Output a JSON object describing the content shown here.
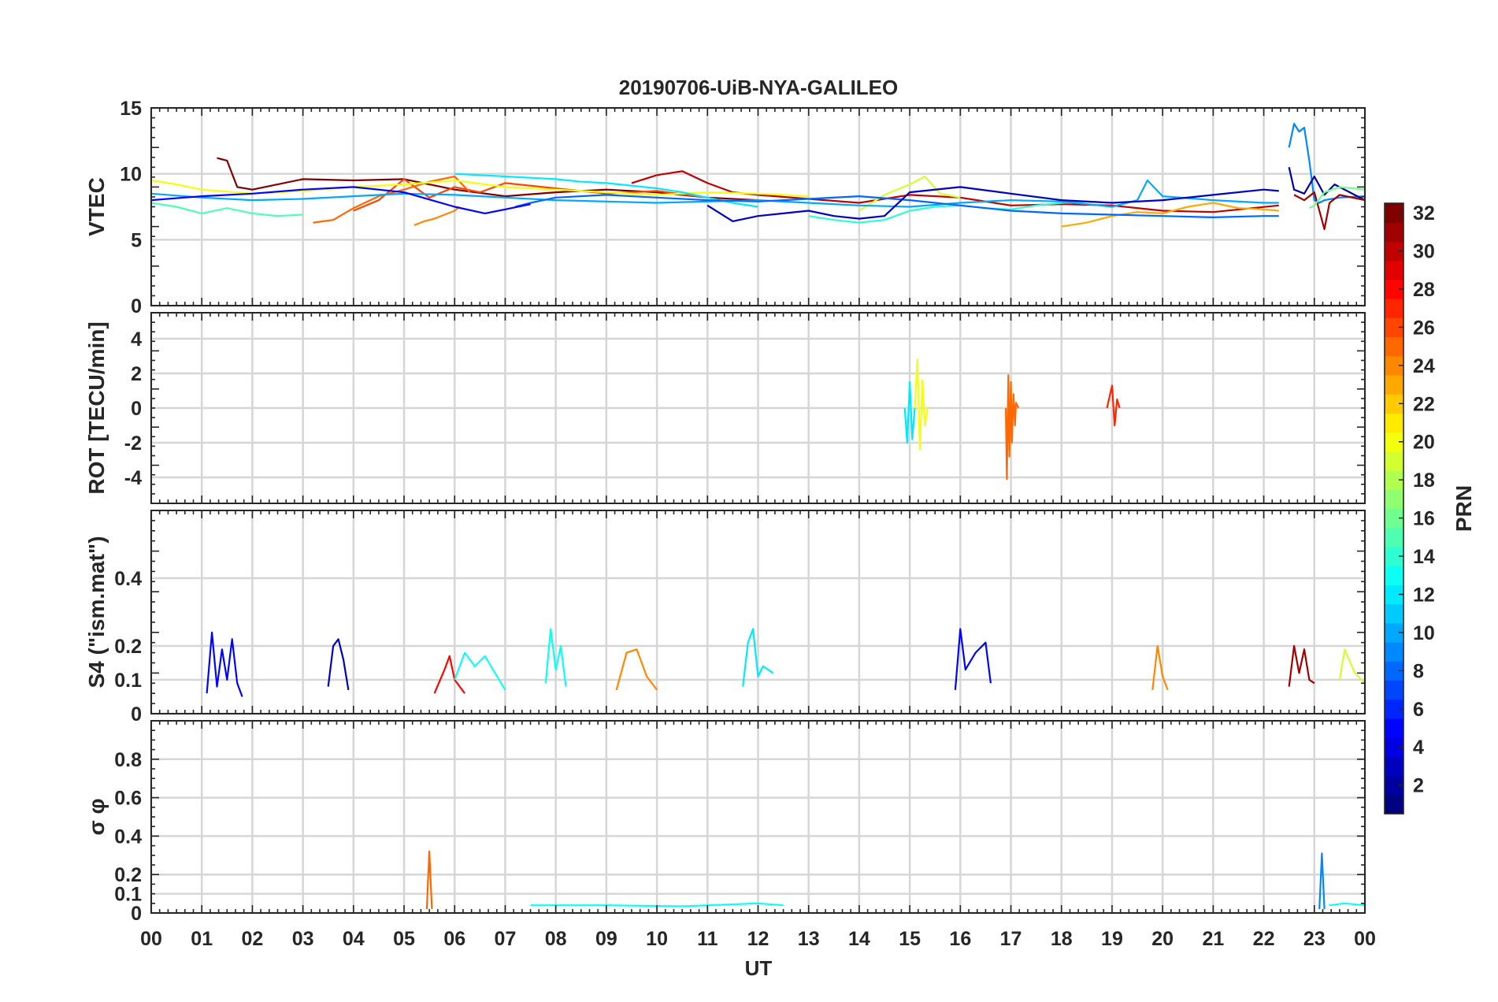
{
  "chart_data": {
    "type": "line",
    "title": "20190706-UiB-NYA-GALILEO",
    "xlabel": "UT",
    "x_tick_labels": [
      "00",
      "01",
      "02",
      "03",
      "04",
      "05",
      "06",
      "07",
      "08",
      "09",
      "10",
      "11",
      "12",
      "13",
      "14",
      "15",
      "16",
      "17",
      "18",
      "19",
      "20",
      "21",
      "22",
      "23",
      "00"
    ],
    "xlim": [
      0,
      24
    ],
    "grid": true,
    "panels": [
      {
        "ylabel": "VTEC",
        "ylim": [
          0,
          15
        ],
        "y_ticks": [
          0,
          5,
          10,
          15
        ],
        "y_tick_labels": [
          "0",
          "5",
          "10",
          "15"
        ],
        "series": [
          {
            "prn": 32,
            "x": [
              1.3,
              1.5,
              1.7,
              2.0,
              3.0,
              4.0,
              5.0,
              6.0,
              7.0,
              8.0,
              9.0,
              10.0,
              11.0,
              12.0
            ],
            "y": [
              11.2,
              11.0,
              9.0,
              8.8,
              9.6,
              9.5,
              9.6,
              8.8,
              8.3,
              8.6,
              8.8,
              8.6,
              8.2,
              8.0
            ]
          },
          {
            "prn": 30,
            "x": [
              9.5,
              10.0,
              10.5,
              11.0,
              11.5,
              12.0,
              13.0,
              14.0,
              15.0,
              16.0,
              17.0,
              18.0,
              19.0,
              20.0,
              21.0,
              22.3
            ],
            "y": [
              9.3,
              9.9,
              10.2,
              9.3,
              8.6,
              8.4,
              8.1,
              7.8,
              8.4,
              8.2,
              7.6,
              7.7,
              7.6,
              7.2,
              7.1,
              7.6
            ]
          },
          {
            "prn": 26,
            "x": [
              4.0,
              4.5,
              5.0,
              5.5,
              6.0,
              6.5,
              7.0,
              8.0,
              9.0,
              10.0,
              11.0
            ],
            "y": [
              7.2,
              8.0,
              9.6,
              8.2,
              9.0,
              8.6,
              9.3,
              8.9,
              8.5,
              8.7,
              8.2
            ]
          },
          {
            "prn": 25,
            "x": [
              3.2,
              3.6,
              4.0,
              4.5,
              5.0,
              5.5,
              6.0,
              6.3
            ],
            "y": [
              6.3,
              6.5,
              7.4,
              8.3,
              8.8,
              9.4,
              9.8,
              8.6
            ]
          },
          {
            "prn": 24,
            "x": [
              5.2,
              5.4,
              5.6,
              5.8,
              6.0,
              6.1
            ],
            "y": [
              6.1,
              6.4,
              6.6,
              6.9,
              7.2,
              7.5
            ]
          },
          {
            "prn": 23,
            "x": [
              18.0,
              18.5,
              19.0,
              19.5,
              20.0,
              20.5,
              21.0,
              21.5,
              22.0,
              22.3
            ],
            "y": [
              6.0,
              6.3,
              6.8,
              7.1,
              7.0,
              7.5,
              7.8,
              7.4,
              7.3,
              7.2
            ]
          },
          {
            "prn": 20,
            "x": [
              0.0,
              0.5,
              1.0,
              2.0,
              3.0,
              4.0,
              5.0,
              6.0,
              7.0,
              8.0,
              9.0,
              10.0,
              11.0,
              12.0,
              13.0
            ],
            "y": [
              9.5,
              9.2,
              8.8,
              8.5,
              8.7,
              9.0,
              9.2,
              9.5,
              9.0,
              8.8,
              8.6,
              8.4,
              8.6,
              8.5,
              8.3
            ]
          },
          {
            "prn": 19,
            "x": [
              14.0,
              14.5,
              15.0,
              15.3,
              15.6,
              16.0
            ],
            "y": [
              7.2,
              8.4,
              9.2,
              9.8,
              8.5,
              8.2
            ]
          },
          {
            "prn": 15,
            "x": [
              0.0,
              0.5,
              1.0,
              1.5,
              2.0,
              2.5,
              3.0
            ],
            "y": [
              7.8,
              7.5,
              7.0,
              7.4,
              7.0,
              6.8,
              6.9
            ]
          },
          {
            "prn": 14,
            "x": [
              13.0,
              13.5,
              14.0,
              14.5,
              15.0,
              15.5,
              16.0,
              16.5,
              17.0,
              17.5,
              18.0,
              18.5,
              19.0
            ],
            "y": [
              6.8,
              6.5,
              6.3,
              6.5,
              7.2,
              7.5,
              7.6,
              7.4,
              7.3,
              7.6,
              7.8,
              7.9,
              7.8
            ]
          },
          {
            "prn": 12,
            "x": [
              6.0,
              6.5,
              7.0,
              7.5,
              8.0,
              8.5,
              9.0,
              9.5,
              10.0,
              10.5,
              11.0,
              11.5,
              12.0
            ],
            "y": [
              10.0,
              9.9,
              9.8,
              9.7,
              9.6,
              9.4,
              9.3,
              9.1,
              8.9,
              8.6,
              8.2,
              7.8,
              7.5
            ]
          },
          {
            "prn": 10,
            "x": [
              0.0,
              1.0,
              2.0,
              3.0,
              4.0,
              5.0,
              6.0,
              7.0,
              8.0,
              9.0,
              10.0,
              11.0,
              12.0,
              13.0,
              14.0,
              15.0,
              16.0,
              17.0,
              18.0,
              19.0,
              19.5,
              19.7,
              20.0,
              21.0,
              22.0,
              22.3
            ],
            "y": [
              8.5,
              8.2,
              8.0,
              8.1,
              8.3,
              8.5,
              8.4,
              8.2,
              8.0,
              7.9,
              7.8,
              7.9,
              8.0,
              7.8,
              7.6,
              7.5,
              7.8,
              8.0,
              7.9,
              7.5,
              8.0,
              9.5,
              8.3,
              8.0,
              7.8,
              7.8
            ]
          },
          {
            "prn": 9,
            "x": [
              22.5,
              22.6,
              22.7,
              22.8,
              22.9,
              23.0,
              23.1,
              23.2,
              23.5,
              24.0
            ],
            "y": [
              12.0,
              13.8,
              13.2,
              13.5,
              11.0,
              8.0,
              7.8,
              8.0,
              8.2,
              8.3
            ]
          },
          {
            "prn": 8,
            "x": [
              7.2,
              7.5,
              8.0,
              9.0,
              10.0,
              11.0,
              12.0,
              13.0,
              14.0,
              15.0,
              16.0,
              17.0,
              18.0,
              19.0,
              20.0,
              21.0,
              22.0,
              22.3
            ],
            "y": [
              7.5,
              7.8,
              8.2,
              8.4,
              8.2,
              8.0,
              7.9,
              8.1,
              8.3,
              8.0,
              7.6,
              7.2,
              7.0,
              6.9,
              6.8,
              6.7,
              6.8,
              6.8
            ]
          },
          {
            "prn": 5,
            "x": [
              0.0,
              1.0,
              2.0,
              3.0,
              4.0,
              5.0,
              6.0,
              6.6,
              7.0,
              7.5
            ],
            "y": [
              8.0,
              8.3,
              8.5,
              8.8,
              9.0,
              8.6,
              7.5,
              7.0,
              7.3,
              7.7
            ]
          },
          {
            "prn": 3,
            "x": [
              11.0,
              11.5,
              12.0,
              12.5,
              13.0,
              13.5,
              14.0,
              14.5,
              15.0,
              16.0,
              17.0,
              18.0,
              19.0,
              20.0,
              21.0,
              22.0,
              22.3
            ],
            "y": [
              7.6,
              6.4,
              6.8,
              7.0,
              7.2,
              6.8,
              6.6,
              6.8,
              8.6,
              9.0,
              8.5,
              8.0,
              7.8,
              8.0,
              8.4,
              8.8,
              8.7
            ]
          },
          {
            "prn": 2,
            "x": [
              22.5,
              22.6,
              22.8,
              23.0,
              23.2,
              23.4,
              24.0
            ],
            "y": [
              10.5,
              8.8,
              8.5,
              9.8,
              8.4,
              9.2,
              8.0
            ]
          },
          {
            "prn": 31,
            "x": [
              22.6,
              22.8,
              23.0,
              23.2,
              23.3,
              23.5,
              24.0
            ],
            "y": [
              8.4,
              8.0,
              8.6,
              5.8,
              7.8,
              8.4,
              8.0
            ]
          },
          {
            "prn": 16,
            "x": [
              22.9,
              23.0,
              23.2,
              23.5,
              24.0
            ],
            "y": [
              7.4,
              7.6,
              8.6,
              9.0,
              8.8
            ]
          }
        ]
      },
      {
        "ylabel": "ROT [TECU/min]",
        "ylim": [
          -5.5,
          5.5
        ],
        "y_ticks": [
          -4,
          -2,
          0,
          2,
          4
        ],
        "y_tick_labels": [
          "-4",
          "-2",
          "0",
          "2",
          "4"
        ],
        "series": [
          {
            "prn": 25,
            "x": [
              16.9,
              16.92,
              16.95,
              16.97,
              17.0,
              17.02,
              17.05,
              17.08,
              17.1,
              17.15
            ],
            "y": [
              0.0,
              -4.1,
              1.9,
              -2.8,
              1.5,
              -2.0,
              0.8,
              -1.0,
              0.3,
              0.0
            ]
          },
          {
            "prn": 20,
            "x": [
              15.1,
              15.15,
              15.2,
              15.25,
              15.3,
              15.35
            ],
            "y": [
              0.0,
              2.8,
              -2.4,
              1.6,
              -1.0,
              0.0
            ]
          },
          {
            "prn": 12,
            "x": [
              14.9,
              14.95,
              15.0,
              15.05,
              15.1
            ],
            "y": [
              0.0,
              -2.0,
              1.5,
              -1.8,
              0.0
            ]
          },
          {
            "prn": 27,
            "x": [
              18.9,
              19.0,
              19.05,
              19.1,
              19.15
            ],
            "y": [
              0.0,
              1.3,
              -1.0,
              0.5,
              0.0
            ]
          }
        ]
      },
      {
        "ylabel": "S4 (\"ism.mat\")",
        "ylim": [
          0,
          0.6
        ],
        "y_ticks": [
          0,
          0.1,
          0.2,
          0.4
        ],
        "y_tick_labels": [
          "0",
          "0.1",
          "0.2",
          "0.4"
        ],
        "series": [
          {
            "prn": 5,
            "x": [
              1.1,
              1.2,
              1.3,
              1.4,
              1.5,
              1.6,
              1.7,
              1.8
            ],
            "y": [
              0.06,
              0.24,
              0.08,
              0.19,
              0.1,
              0.22,
              0.09,
              0.05
            ]
          },
          {
            "prn": 3,
            "x": [
              3.5,
              3.6,
              3.7,
              3.8,
              3.9
            ],
            "y": [
              0.08,
              0.2,
              0.22,
              0.16,
              0.07
            ]
          },
          {
            "prn": 28,
            "x": [
              5.6,
              5.8,
              5.9,
              6.0,
              6.2
            ],
            "y": [
              0.06,
              0.13,
              0.17,
              0.1,
              0.06
            ]
          },
          {
            "prn": 13,
            "x": [
              6.0,
              6.2,
              6.4,
              6.6,
              6.8,
              7.0
            ],
            "y": [
              0.1,
              0.18,
              0.14,
              0.17,
              0.12,
              0.07
            ]
          },
          {
            "prn": 13,
            "x": [
              7.8,
              7.9,
              8.0,
              8.1,
              8.2
            ],
            "y": [
              0.09,
              0.25,
              0.13,
              0.2,
              0.08
            ]
          },
          {
            "prn": 24,
            "x": [
              9.2,
              9.4,
              9.6,
              9.8,
              10.0
            ],
            "y": [
              0.07,
              0.18,
              0.19,
              0.11,
              0.07
            ]
          },
          {
            "prn": 12,
            "x": [
              11.7,
              11.8,
              11.9,
              12.0,
              12.1,
              12.3
            ],
            "y": [
              0.08,
              0.21,
              0.25,
              0.11,
              0.14,
              0.12
            ]
          },
          {
            "prn": 5,
            "x": [
              15.9,
              16.0,
              16.1,
              16.3,
              16.5,
              16.6
            ],
            "y": [
              0.07,
              0.25,
              0.13,
              0.18,
              0.21,
              0.09
            ]
          },
          {
            "prn": 31,
            "x": [
              22.5,
              22.6,
              22.7,
              22.8,
              22.9,
              23.0
            ],
            "y": [
              0.08,
              0.2,
              0.12,
              0.19,
              0.1,
              0.09
            ]
          },
          {
            "prn": 19,
            "x": [
              23.5,
              23.6,
              23.8,
              24.0
            ],
            "y": [
              0.1,
              0.19,
              0.12,
              0.09
            ]
          },
          {
            "prn": 24,
            "x": [
              19.8,
              19.9,
              20.0,
              20.1
            ],
            "y": [
              0.07,
              0.2,
              0.11,
              0.07
            ]
          }
        ]
      },
      {
        "ylabel": "σ φ",
        "ylim": [
          0,
          1
        ],
        "y_ticks": [
          0,
          0.1,
          0.2,
          0.4,
          0.6,
          0.8
        ],
        "y_tick_labels": [
          "0",
          "0.1",
          "0.2",
          "0.4",
          "0.6",
          "0.8"
        ],
        "series": [
          {
            "prn": 25,
            "x": [
              5.45,
              5.5,
              5.55
            ],
            "y": [
              0.02,
              0.32,
              0.02
            ]
          },
          {
            "prn": 9,
            "x": [
              23.1,
              23.15,
              23.2
            ],
            "y": [
              0.02,
              0.31,
              0.02
            ]
          },
          {
            "prn": 13,
            "x": [
              7.5,
              9.0,
              10.5,
              12.0,
              12.5
            ],
            "y": [
              0.04,
              0.04,
              0.035,
              0.05,
              0.04
            ]
          },
          {
            "prn": 13,
            "x": [
              23.3,
              23.6,
              24.0
            ],
            "y": [
              0.04,
              0.05,
              0.04
            ]
          }
        ]
      }
    ],
    "colorbar": {
      "label": "PRN",
      "range": [
        1,
        32
      ],
      "ticks": [
        2,
        4,
        6,
        8,
        10,
        12,
        14,
        16,
        18,
        20,
        22,
        24,
        26,
        28,
        30,
        32
      ],
      "tick_labels": [
        "2",
        "4",
        "6",
        "8",
        "10",
        "12",
        "14",
        "16",
        "18",
        "20",
        "22",
        "24",
        "26",
        "28",
        "30",
        "32"
      ],
      "colormap": "jet"
    }
  }
}
